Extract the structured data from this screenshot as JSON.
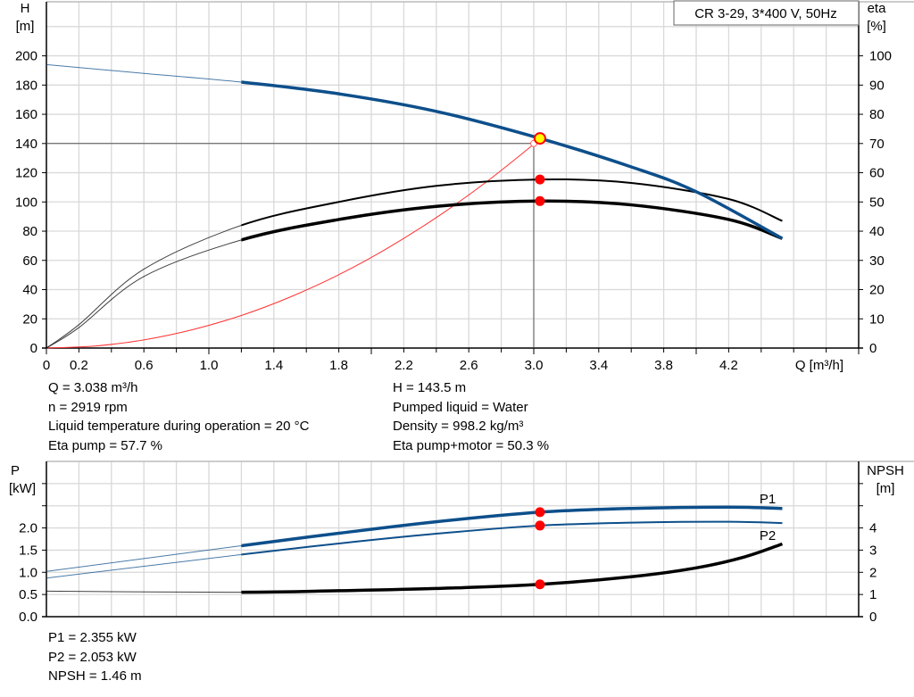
{
  "chart_data": [
    {
      "type": "line",
      "title": "CR 3-29, 3*400 V, 50Hz",
      "xlabel": "Q [m³/h]",
      "ylabel": "H\n[m]",
      "y2label": "eta\n[%]",
      "xlim": [
        0,
        5.0
      ],
      "ylim": [
        0,
        237
      ],
      "y2lim": [
        0,
        118.5
      ],
      "xticks": [
        "0",
        "0.2",
        "0.6",
        "1.0",
        "1.4",
        "1.8",
        "2.2",
        "2.6",
        "3.0",
        "3.4",
        "3.8",
        "4.2"
      ],
      "xtick_values": [
        0,
        0.2,
        0.6,
        1.0,
        1.4,
        1.8,
        2.2,
        2.6,
        3.0,
        3.4,
        3.8,
        4.2
      ],
      "yticks": [
        0,
        20,
        40,
        60,
        80,
        100,
        120,
        140,
        160,
        180,
        200
      ],
      "y2ticks": [
        0,
        10,
        20,
        30,
        40,
        50,
        60,
        70,
        80,
        90,
        100
      ],
      "grid": true,
      "series": [
        {
          "key": "H",
          "axis": "left",
          "color": "#0d4f8b",
          "x": [
            0,
            0.6,
            1.2,
            1.8,
            2.4,
            3.038,
            3.6,
            4.0,
            4.53
          ],
          "y": [
            194,
            188,
            182,
            174,
            162,
            143.5,
            124,
            107,
            75
          ]
        },
        {
          "key": "eta_pump",
          "axis": "right",
          "color": "#000000",
          "x": [
            0,
            0.2,
            0.6,
            1.2,
            1.8,
            2.4,
            3.038,
            3.6,
            4.2,
            4.53
          ],
          "y": [
            0,
            8,
            27,
            42,
            50,
            55.5,
            57.7,
            56.5,
            51,
            43.5
          ]
        },
        {
          "key": "eta_pump_motor",
          "axis": "right",
          "color": "#000000",
          "x": [
            0,
            0.2,
            0.6,
            1.2,
            1.8,
            2.4,
            3.038,
            3.6,
            4.2,
            4.53
          ],
          "y": [
            0,
            7,
            24.5,
            37,
            44,
            48.5,
            50.3,
            49,
            44,
            37.5
          ]
        },
        {
          "key": "system",
          "axis": "left",
          "color": "#ff3030",
          "x": [
            0,
            0.3,
            0.6,
            0.9,
            1.2,
            1.5,
            1.8,
            2.1,
            2.4,
            2.7,
            3.0
          ],
          "y": [
            0,
            1.4,
            5.6,
            12.6,
            22.3,
            34.9,
            50.2,
            68.4,
            89.3,
            113,
            139.5
          ]
        }
      ],
      "duty_point": {
        "Q": 3.038,
        "H": 143.5,
        "eta_pump": 57.7,
        "eta_pump_motor": 50.3
      },
      "crosshair": {
        "Q": 3.0,
        "H": 140
      }
    },
    {
      "type": "line",
      "xlim": [
        0,
        5.0
      ],
      "ylabel": "P\n[kW]",
      "y2label": "NPSH\n[m]",
      "ylim": [
        0,
        3.5
      ],
      "y2lim": [
        0,
        7
      ],
      "yticks": [
        "0.0",
        "0.5",
        "1.0",
        "1.5",
        "2.0"
      ],
      "y2ticks": [
        0,
        1,
        2,
        3,
        4
      ],
      "grid": true,
      "series": [
        {
          "name": "P1",
          "axis": "left",
          "color": "#0d4f8b",
          "x": [
            0,
            1.2,
            1.8,
            2.4,
            3.038,
            3.6,
            4.2,
            4.53
          ],
          "y": [
            1.02,
            1.6,
            1.88,
            2.14,
            2.355,
            2.44,
            2.47,
            2.44
          ]
        },
        {
          "name": "P2",
          "axis": "left",
          "color": "#0d4f8b",
          "x": [
            0,
            1.2,
            1.8,
            2.4,
            3.038,
            3.6,
            4.2,
            4.53
          ],
          "y": [
            0.87,
            1.4,
            1.65,
            1.87,
            2.053,
            2.12,
            2.14,
            2.11
          ]
        },
        {
          "key": "NPSH",
          "axis": "right",
          "color": "#000000",
          "x": [
            0,
            1.2,
            1.8,
            2.4,
            3.038,
            3.6,
            4.0,
            4.3,
            4.53
          ],
          "y": [
            1.15,
            1.1,
            1.17,
            1.27,
            1.46,
            1.8,
            2.2,
            2.7,
            3.28
          ]
        }
      ],
      "duty_point": {
        "Q": 3.038,
        "P1": 2.355,
        "P2": 2.053,
        "NPSH": 1.46
      }
    }
  ],
  "info_top": {
    "left": [
      "Q = 3.038 m³/h",
      "n = 2919 rpm",
      "Liquid temperature during operation = 20 °C",
      "Eta pump = 57.7 %"
    ],
    "right": [
      "H = 143.5 m",
      "Pumped liquid = Water",
      "Density = 998.2 kg/m³",
      "Eta pump+motor = 50.3 %"
    ]
  },
  "info_bottom": [
    "P1 = 2.355 kW",
    "P2 = 2.053 kW",
    "NPSH = 1.46 m"
  ],
  "colors": {
    "grid": "#d9d9d9",
    "blue": "#0d4f8b",
    "duty": "#ff0000",
    "duty_highlight": "#ffff00"
  }
}
